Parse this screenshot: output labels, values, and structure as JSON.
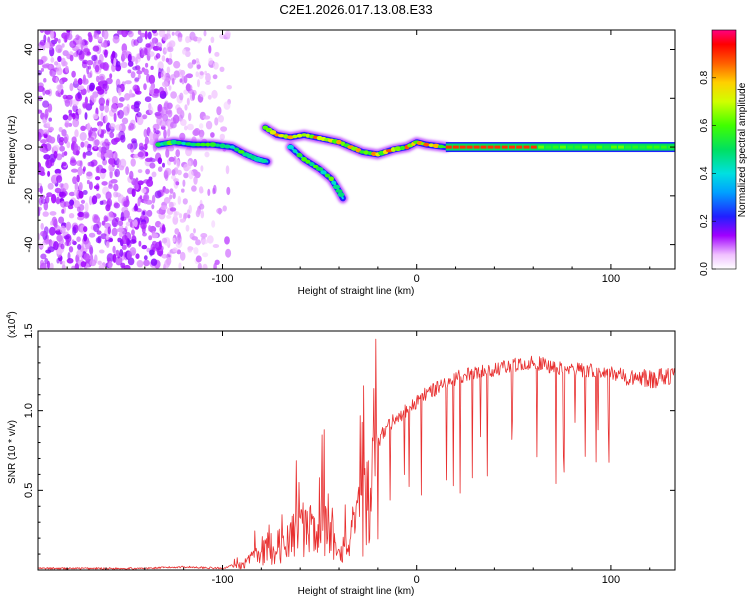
{
  "title": "C2E1.2026.017.13.08.E33",
  "chart_data": [
    {
      "type": "heatmap",
      "title": "C2E1.2026.017.13.08.E33",
      "xlabel": "Height of straight line (km)",
      "ylabel": "Frequency (Hz)",
      "xlim": [
        -195,
        133
      ],
      "ylim": [
        -50,
        48
      ],
      "x_ticks": [
        -100,
        0,
        100
      ],
      "y_ticks": [
        -40,
        -20,
        0,
        20,
        40
      ],
      "colorbar": {
        "label": "Normalized spectral amplitude",
        "range": [
          0,
          1
        ],
        "ticks": [
          0.0,
          0.2,
          0.4,
          0.6,
          0.8
        ]
      },
      "features": [
        {
          "name": "noise-region",
          "x_range": [
            -195,
            -95
          ],
          "freq_range": [
            -50,
            48
          ]
        },
        {
          "name": "main-trace",
          "points": [
            [
              -133,
              1
            ],
            [
              -125,
              2
            ],
            [
              -115,
              1
            ],
            [
              -105,
              1
            ],
            [
              -95,
              0
            ],
            [
              -88,
              -3
            ],
            [
              -82,
              -5
            ],
            [
              -77,
              -6
            ]
          ],
          "amplitude": 0.5
        },
        {
          "name": "upper-branch",
          "points": [
            [
              -78,
              8
            ],
            [
              -72,
              5
            ],
            [
              -65,
              4
            ],
            [
              -58,
              5
            ],
            [
              -52,
              4
            ],
            [
              -46,
              3
            ],
            [
              -40,
              2
            ],
            [
              -34,
              0
            ],
            [
              -28,
              -2
            ],
            [
              -20,
              -3
            ],
            [
              -12,
              -1
            ],
            [
              -5,
              0
            ],
            [
              0,
              2
            ],
            [
              5,
              1
            ],
            [
              15,
              0
            ]
          ],
          "amplitude": 0.7
        },
        {
          "name": "descending-branch",
          "points": [
            [
              -65,
              0
            ],
            [
              -58,
              -5
            ],
            [
              -50,
              -9
            ],
            [
              -44,
              -13
            ],
            [
              -40,
              -18
            ],
            [
              -38,
              -21
            ]
          ],
          "amplitude": 0.5
        },
        {
          "name": "flat-tone",
          "points": [
            [
              15,
              0
            ],
            [
              40,
              0
            ],
            [
              70,
              0
            ],
            [
              100,
              0
            ],
            [
              133,
              0
            ]
          ],
          "amplitude": 0.9
        }
      ]
    },
    {
      "type": "line",
      "xlabel": "Height of straight line (km)",
      "ylabel": "SNR (10 * v/v)",
      "y_multiplier": "(x10",
      "y_multiplier_exp": "4",
      "y_multiplier_close": ")",
      "xlim": [
        -195,
        133
      ],
      "ylim": [
        0,
        1.5
      ],
      "x_ticks": [
        -100,
        0,
        100
      ],
      "y_ticks": [
        0.5,
        1.0,
        1.5
      ],
      "series": [
        {
          "name": "SNR",
          "color": "#e83030",
          "x": [
            -195,
            -180,
            -160,
            -140,
            -120,
            -100,
            -90,
            -85,
            -80,
            -77,
            -75,
            -70,
            -65,
            -60,
            -55,
            -50,
            -45,
            -42,
            -40,
            -38,
            -35,
            -30,
            -28,
            -25,
            -20,
            -15,
            -10,
            -5,
            0,
            5,
            10,
            15,
            20,
            30,
            40,
            50,
            60,
            70,
            80,
            90,
            100,
            110,
            120,
            133
          ],
          "values": [
            0.01,
            0.01,
            0.01,
            0.01,
            0.02,
            0.01,
            0.05,
            0.1,
            0.18,
            0.25,
            0.12,
            0.18,
            0.28,
            0.4,
            0.35,
            0.55,
            0.45,
            0.3,
            0.25,
            0.2,
            0.28,
            0.45,
            0.55,
            0.7,
            0.85,
            0.95,
            1.0,
            1.05,
            1.1,
            1.15,
            1.18,
            1.22,
            1.25,
            1.28,
            1.3,
            1.33,
            1.35,
            1.32,
            1.3,
            1.3,
            1.28,
            1.27,
            1.26,
            1.27
          ]
        }
      ]
    }
  ]
}
